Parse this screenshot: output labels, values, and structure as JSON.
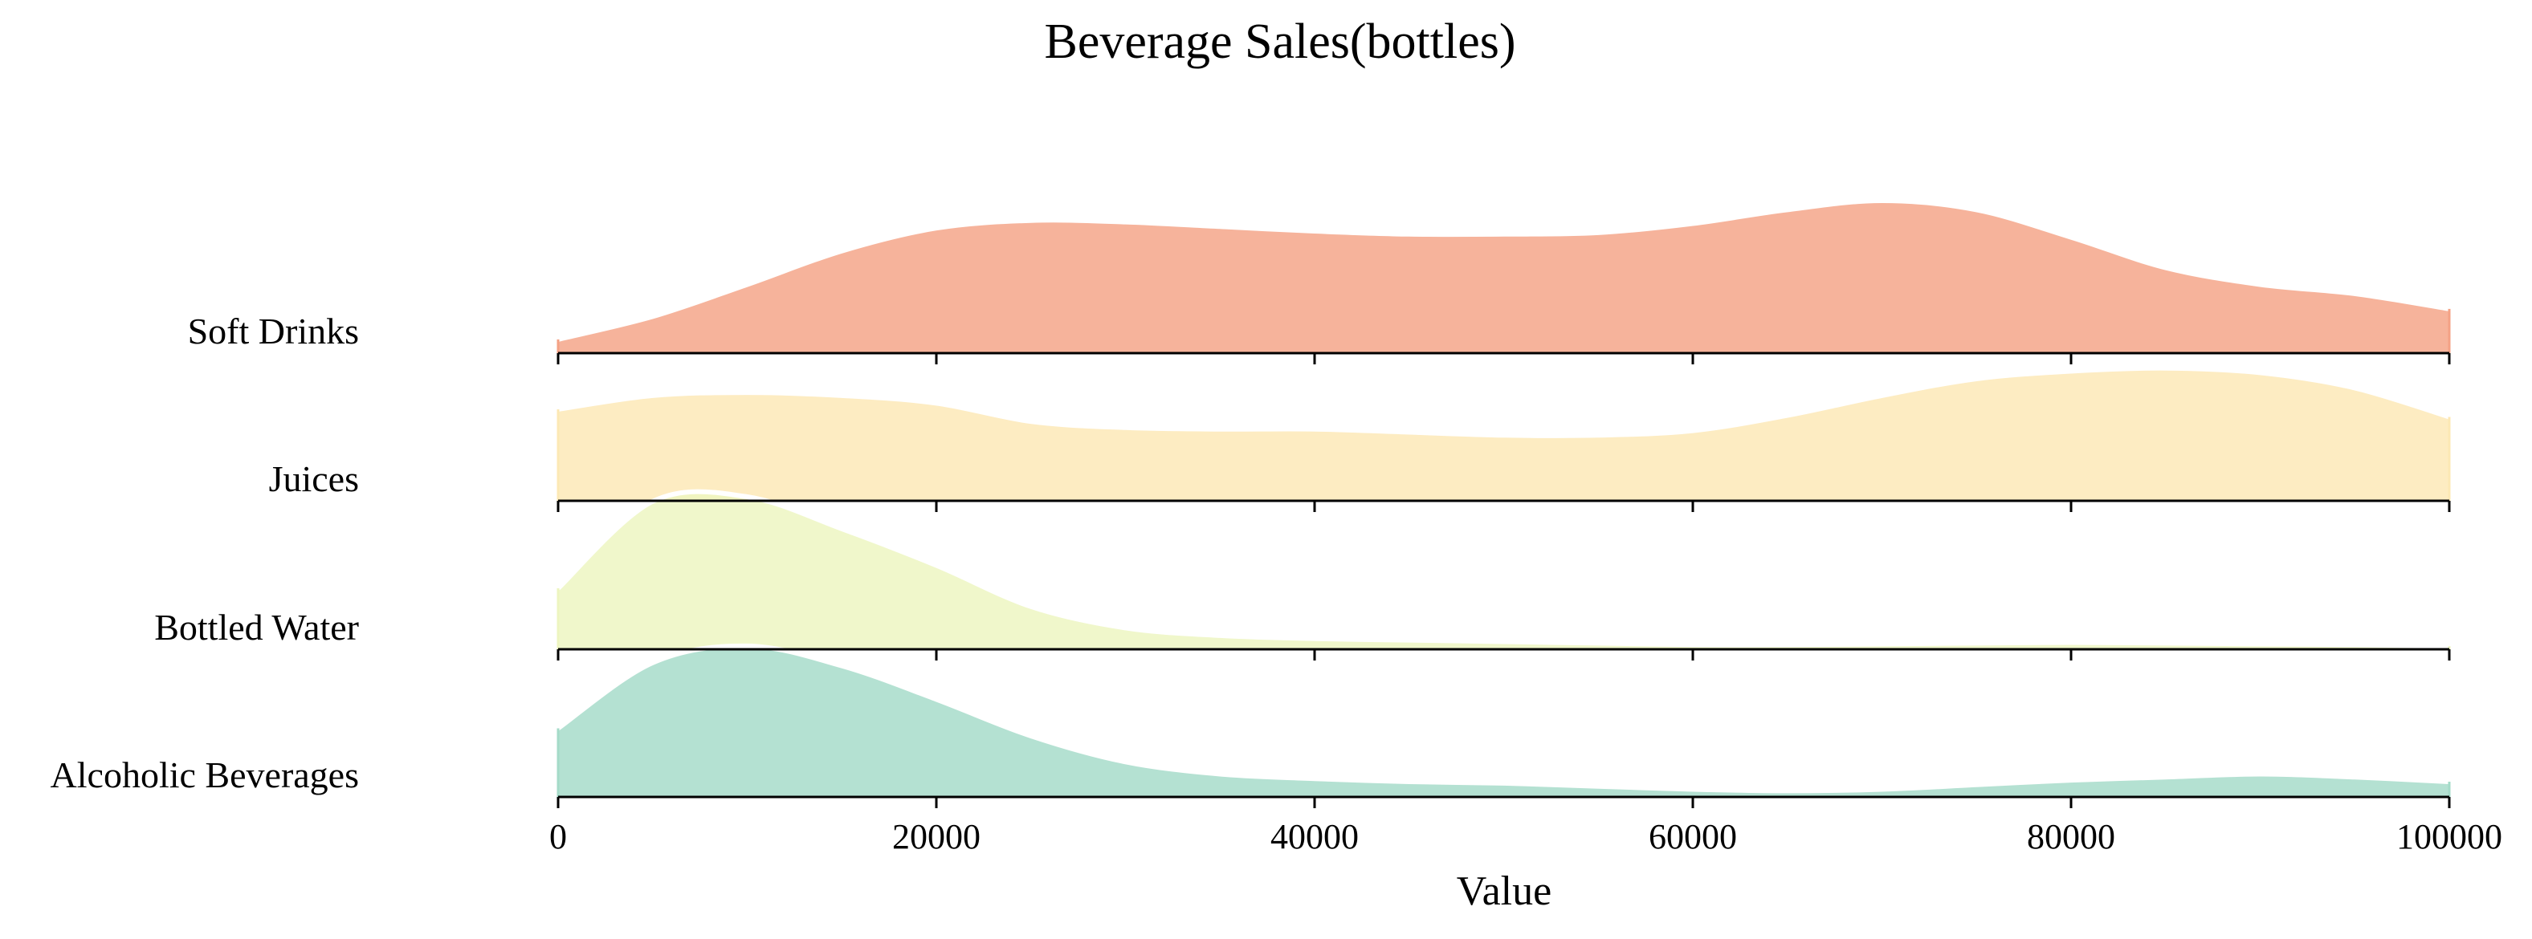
{
  "chart_data": {
    "type": "ridgeline",
    "title": "Beverage Sales(bottles)",
    "xlabel": "Value",
    "ylabel": "",
    "xlim": [
      0,
      100000
    ],
    "xticks": [
      0,
      20000,
      40000,
      60000,
      80000,
      100000
    ],
    "x": [
      0,
      5000,
      10000,
      15000,
      20000,
      25000,
      30000,
      35000,
      40000,
      45000,
      50000,
      55000,
      60000,
      65000,
      70000,
      75000,
      80000,
      85000,
      90000,
      95000,
      100000
    ],
    "series": [
      {
        "name": "Soft Drinks",
        "color": "#f4a285",
        "density": [
          0.09,
          0.24,
          0.45,
          0.67,
          0.82,
          0.87,
          0.86,
          0.83,
          0.8,
          0.78,
          0.78,
          0.79,
          0.85,
          0.94,
          1.0,
          0.94,
          0.76,
          0.56,
          0.45,
          0.39,
          0.29
        ]
      },
      {
        "name": "Juices",
        "color": "#fce8b4",
        "density": [
          0.6,
          0.69,
          0.71,
          0.69,
          0.64,
          0.52,
          0.48,
          0.47,
          0.47,
          0.45,
          0.43,
          0.43,
          0.46,
          0.56,
          0.69,
          0.8,
          0.85,
          0.87,
          0.84,
          0.74,
          0.55
        ]
      },
      {
        "name": "Bottled Water",
        "color": "#edf5bf",
        "density": [
          0.4,
          0.97,
          1.0,
          0.79,
          0.55,
          0.28,
          0.14,
          0.09,
          0.07,
          0.06,
          0.05,
          0.04,
          0.03,
          0.03,
          0.035,
          0.04,
          0.045,
          0.04,
          0.035,
          0.03,
          0.02
        ]
      },
      {
        "name": "Alcoholic Beverages",
        "color": "#a4dbc8",
        "density": [
          0.45,
          0.88,
          0.99,
          0.86,
          0.64,
          0.4,
          0.23,
          0.15,
          0.12,
          0.1,
          0.09,
          0.07,
          0.05,
          0.04,
          0.05,
          0.08,
          0.11,
          0.13,
          0.15,
          0.13,
          0.1
        ]
      }
    ]
  }
}
